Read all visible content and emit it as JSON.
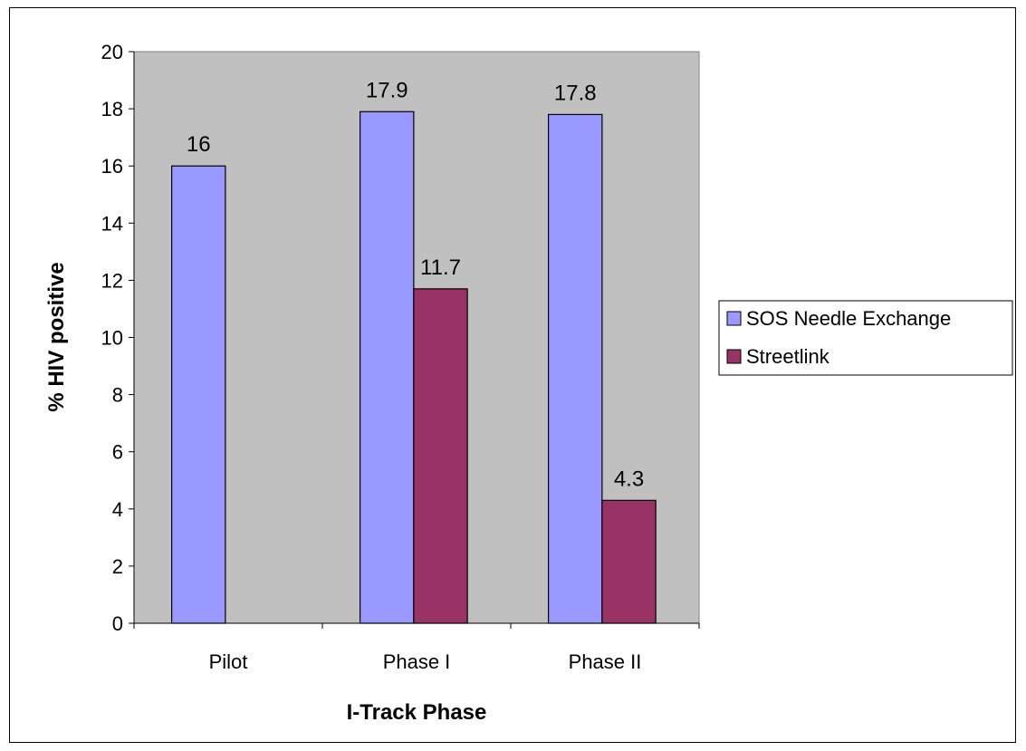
{
  "chart_data": {
    "type": "bar",
    "categories": [
      "Pilot",
      "Phase I",
      "Phase II"
    ],
    "series": [
      {
        "name": "SOS Needle Exchange",
        "values": [
          16,
          17.9,
          17.8
        ],
        "color": "#9999ff",
        "labels": [
          "16",
          "17.9",
          "17.8"
        ]
      },
      {
        "name": "Streetlink",
        "values": [
          null,
          11.7,
          4.3
        ],
        "color": "#993366",
        "labels": [
          "",
          "11.7",
          "4.3"
        ]
      }
    ],
    "xlabel": "I-Track Phase",
    "ylabel": "% HIV positive",
    "ylim": [
      0,
      20
    ],
    "yticks": [
      0,
      2,
      4,
      6,
      8,
      10,
      12,
      14,
      16,
      18,
      20
    ],
    "grid": false,
    "plot_background": "#c0c0c0",
    "legend": "right"
  }
}
